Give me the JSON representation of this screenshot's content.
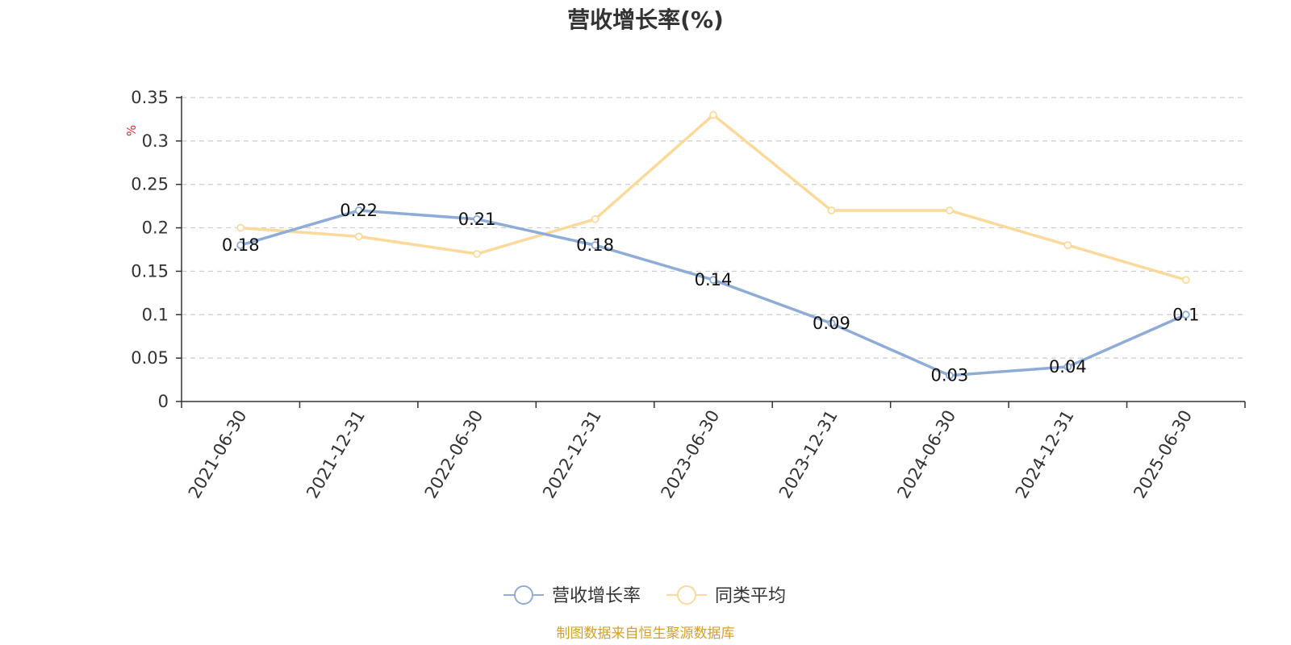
{
  "chart_data": {
    "type": "line",
    "title": "营收增长率(%)",
    "ylabel": "%",
    "xlabel": "",
    "categories": [
      "2021-06-30",
      "2021-12-31",
      "2022-06-30",
      "2022-12-31",
      "2023-06-30",
      "2023-12-31",
      "2024-06-30",
      "2024-12-31",
      "2025-06-30"
    ],
    "ylim": [
      0,
      0.35
    ],
    "yticks": [
      0,
      0.05,
      0.1,
      0.15,
      0.2,
      0.25,
      0.3,
      0.35
    ],
    "ytick_labels": [
      "0",
      "0.05",
      "0.1",
      "0.15",
      "0.2",
      "0.25",
      "0.3",
      "0.35"
    ],
    "grid": true,
    "legend_position": "bottom-center",
    "series": [
      {
        "name": "营收增长率",
        "color": "#8eacd7",
        "values": [
          0.18,
          0.22,
          0.21,
          0.18,
          0.14,
          0.09,
          0.03,
          0.04,
          0.1
        ],
        "data_labels": [
          "0.18",
          "0.22",
          "0.21",
          "0.18",
          "0.14",
          "0.09",
          "0.03",
          "0.04",
          "0.1"
        ]
      },
      {
        "name": "同类平均",
        "color": "#fbd99a",
        "values": [
          0.2,
          0.19,
          0.17,
          0.21,
          0.33,
          0.22,
          0.22,
          0.18,
          0.14
        ]
      }
    ]
  },
  "source": {
    "text": "制图数据来自恒生聚源数据库",
    "color": "#d4a02a"
  }
}
